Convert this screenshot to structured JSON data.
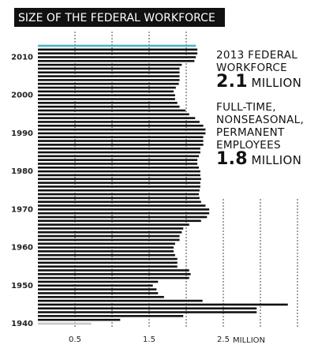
{
  "chart_data": {
    "type": "bar",
    "orientation": "horizontal",
    "title": "SIZE OF THE FEDERAL WORKFORCE",
    "x": [
      1940,
      1941,
      1942,
      1943,
      1944,
      1945,
      1946,
      1947,
      1948,
      1949,
      1950,
      1951,
      1952,
      1953,
      1954,
      1955,
      1956,
      1957,
      1958,
      1959,
      1960,
      1961,
      1962,
      1963,
      1964,
      1965,
      1966,
      1967,
      1968,
      1969,
      1970,
      1971,
      1972,
      1973,
      1974,
      1975,
      1976,
      1977,
      1978,
      1979,
      1980,
      1981,
      1982,
      1983,
      1984,
      1985,
      1986,
      1987,
      1988,
      1989,
      1990,
      1991,
      1992,
      1993,
      1994,
      1995,
      1996,
      1997,
      1998,
      1999,
      2000,
      2001,
      2002,
      2003,
      2004,
      2005,
      2006,
      2007,
      2008,
      2009,
      2010,
      2011,
      2012,
      2013
    ],
    "values": [
      0.72,
      1.11,
      1.96,
      2.95,
      2.95,
      3.37,
      2.22,
      1.7,
      1.62,
      1.6,
      1.55,
      1.62,
      2.04,
      2.06,
      2.04,
      1.88,
      1.88,
      1.88,
      1.85,
      1.83,
      1.83,
      1.85,
      1.91,
      1.91,
      1.94,
      1.96,
      2.04,
      2.2,
      2.28,
      2.31,
      2.31,
      2.26,
      2.2,
      2.18,
      2.17,
      2.18,
      2.19,
      2.19,
      2.2,
      2.19,
      2.19,
      2.17,
      2.15,
      2.15,
      2.17,
      2.19,
      2.19,
      2.23,
      2.23,
      2.23,
      2.26,
      2.26,
      2.23,
      2.18,
      2.12,
      2.04,
      1.99,
      1.91,
      1.88,
      1.85,
      1.85,
      1.83,
      1.86,
      1.9,
      1.91,
      1.91,
      1.91,
      1.91,
      1.94,
      2.11,
      2.13,
      2.15,
      2.15,
      2.13
    ],
    "color": "#111111",
    "first_color": "#c8c8c8",
    "last_color": "#4ab3c6",
    "xlim": [
      1940,
      2013
    ],
    "xticks": [
      1940,
      1950,
      1960,
      1970,
      1980,
      1990,
      2000,
      2010
    ],
    "ylim": [
      0,
      3.5
    ],
    "yticks": [
      0.5,
      1.5,
      2.5
    ],
    "grid_lines": [
      0.5,
      1,
      1.5,
      2,
      2.5,
      3,
      3.5
    ],
    "y_label": "MILLION",
    "annotations": [
      {
        "lines": [
          "2013 FEDERAL",
          "WORKFORCE"
        ],
        "value": 2.1,
        "unit": "MILLION"
      },
      {
        "lines": [
          "FULL-TIME,",
          "NONSEASONAL,",
          "PERMANENT",
          "EMPLOYEES"
        ],
        "value": 1.8,
        "unit": "MILLION"
      }
    ]
  }
}
